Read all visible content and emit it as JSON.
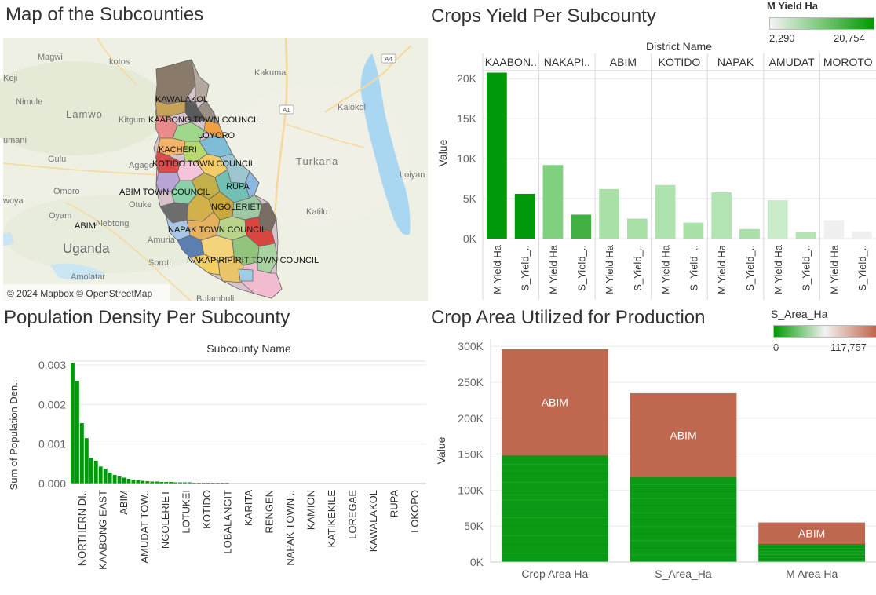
{
  "titles": {
    "map": "Map of the Subcounties",
    "yield": "Crops Yield Per Subcounty",
    "density": "Population Density Per Subcounty",
    "area": "Crop Area Utilized for Production"
  },
  "map": {
    "attribution": "© 2024 Mapbox © OpenStreetMap",
    "place_labels": [
      "Magwi",
      "Ikotos",
      "Kakuma",
      "Nimule",
      "Lamwo",
      "Kitgum",
      "Kalokol",
      "Gulu",
      "Agago",
      "Omoro",
      "Oyam",
      "Otuke",
      "Alebtong",
      "Amuria",
      "Uganda",
      "Soroti",
      "Amolatar",
      "Turkana",
      "Loiyan",
      "Katilu",
      "Bulambuli"
    ],
    "road_labels": [
      "A4",
      "A1"
    ],
    "edge_fragments": [
      "Keji",
      "umani",
      "woya"
    ],
    "subcounty_labels": [
      "KAWALAKOL",
      "KAABONG TOWN COUNCIL",
      "LOYORO",
      "KACHERI",
      "KOTIDO TOWN COUNCIL",
      "RUPA",
      "ABIM TOWN COUNCIL",
      "NGOLERIET",
      "NAPAK TOWN COUNCIL",
      "NAKAPIRIPIRIT TOWN COUNCIL",
      "ABIM"
    ],
    "colors": {
      "land": "#eef0e4",
      "water": "#a9d7f2",
      "road": "#f6d89a"
    }
  },
  "legends": {
    "yield": {
      "title": "M Yield Ha",
      "min": "2,290",
      "max": "20,754",
      "colors": [
        "#f3f3f3",
        "#009a00"
      ]
    },
    "area": {
      "title": "S_Area_Ha",
      "min": "0",
      "max": "117,757",
      "colors": [
        "#009a00",
        "#f2f2f2",
        "#c0654a"
      ]
    }
  },
  "chart_data": [
    {
      "type": "bar",
      "title": "Crops Yield Per Subcounty",
      "column_header": "District Name",
      "ylabel": "Value",
      "ylim": [
        0,
        21000
      ],
      "yticks": [
        0,
        5000,
        10000,
        15000,
        20000
      ],
      "ytick_labels": [
        "0K",
        "5K",
        "10K",
        "15K",
        "20K"
      ],
      "groups": [
        {
          "name": "KAABON..",
          "bars": [
            {
              "label": "M Yield Ha",
              "value": 20754,
              "color": "#00990a"
            },
            {
              "label": "S_Yield_..",
              "value": 5600,
              "color": "#00990a"
            }
          ]
        },
        {
          "name": "NAKAPI..",
          "bars": [
            {
              "label": "M Yield Ha",
              "value": 9200,
              "color": "#7fd07f"
            },
            {
              "label": "S_Yield_..",
              "value": 3000,
              "color": "#42b042"
            }
          ]
        },
        {
          "name": "ABIM",
          "bars": [
            {
              "label": "M Yield Ha",
              "value": 6200,
              "color": "#a8e0a8"
            },
            {
              "label": "S_Yield_..",
              "value": 2500,
              "color": "#a8e0a8"
            }
          ]
        },
        {
          "name": "KOTIDO",
          "bars": [
            {
              "label": "M Yield Ha",
              "value": 6700,
              "color": "#aee2ae"
            },
            {
              "label": "S_Yield_..",
              "value": 2000,
              "color": "#a8e0a8"
            }
          ]
        },
        {
          "name": "NAPAK",
          "bars": [
            {
              "label": "M Yield Ha",
              "value": 5800,
              "color": "#b4e4b4"
            },
            {
              "label": "S_Yield_..",
              "value": 1200,
              "color": "#a8e0a8"
            }
          ]
        },
        {
          "name": "AMUDAT",
          "bars": [
            {
              "label": "M Yield Ha",
              "value": 4800,
              "color": "#c9ebc9"
            },
            {
              "label": "S_Yield_..",
              "value": 800,
              "color": "#b4e4b4"
            }
          ]
        },
        {
          "name": "MOROTO",
          "bars": [
            {
              "label": "M Yield Ha",
              "value": 2290,
              "color": "#f0f0f0"
            },
            {
              "label": "S_Yield_..",
              "value": 900,
              "color": "#f0f0f0"
            }
          ]
        }
      ]
    },
    {
      "type": "bar",
      "title": "Population Density Per Subcounty",
      "xlabel": "Subcounty Name",
      "ylabel": "Sum of Population Den..",
      "ylim": [
        0,
        0.0031
      ],
      "yticks": [
        0,
        0.001,
        0.002,
        0.003
      ],
      "ytick_labels": [
        "0.000",
        "0.001",
        "0.002",
        "0.003"
      ],
      "color": "#00990a",
      "values": [
        0.00305,
        0.0026,
        0.00153,
        0.00115,
        0.00065,
        0.00058,
        0.00043,
        0.00038,
        0.00028,
        0.00022,
        0.00018,
        0.00015,
        0.00012,
        0.0001,
        8e-05,
        7e-05,
        6e-05,
        5e-05,
        5e-05,
        4e-05,
        4e-05,
        4e-05,
        3e-05,
        3e-05,
        3e-05,
        3e-05,
        2e-05,
        2e-05,
        2e-05,
        2e-05,
        2e-05,
        2e-05,
        2e-05,
        2e-05,
        1e-05,
        1e-05,
        1e-05,
        1e-05,
        1e-05,
        1e-05,
        1e-05,
        1e-05,
        1e-05,
        1e-05,
        1e-05,
        1e-05,
        1e-05,
        1e-05,
        1e-05,
        1e-05,
        1e-05,
        1e-05,
        1e-05,
        1e-05,
        1e-05,
        1e-05,
        1e-05,
        1e-05,
        1e-05,
        1e-05,
        1e-05,
        1e-05,
        1e-05,
        1e-05,
        1e-05,
        1e-05,
        1e-05,
        1e-05,
        1e-05,
        1e-05,
        1e-05,
        1e-05,
        1e-05,
        1e-05,
        1e-05,
        1e-05
      ],
      "tick_labels": [
        {
          "index": 1,
          "text": "NORTHERN DI.."
        },
        {
          "index": 5,
          "text": "KAABONG EAST"
        },
        {
          "index": 11,
          "text": "ABIM"
        },
        {
          "index": 17,
          "text": "AMUDAT TOW.."
        },
        {
          "index": 23,
          "text": "NGOLERIET"
        },
        {
          "index": 29,
          "text": "LOTUKEI"
        },
        {
          "index": 35,
          "text": "KOTIDO"
        },
        {
          "index": 41,
          "text": "LOBALANGIT"
        },
        {
          "index": 47,
          "text": "KARITA"
        },
        {
          "index": 53,
          "text": "RENGEN"
        },
        {
          "index": 59,
          "text": "NAPAK TOWN .."
        },
        {
          "index": 65,
          "text": "KAMION"
        },
        {
          "index": 71,
          "text": "KATIKEKILE"
        }
      ],
      "more_tick_labels": [
        "LOREGAE",
        "KAWALAKOL",
        "RUPA",
        "LOKOPO"
      ]
    },
    {
      "type": "bar",
      "stacked": true,
      "title": "Crop Area Utilized for Production",
      "ylabel": "Value",
      "ylim": [
        0,
        310000
      ],
      "yticks": [
        0,
        50000,
        100000,
        150000,
        200000,
        250000,
        300000
      ],
      "ytick_labels": [
        "0K",
        "50K",
        "100K",
        "150K",
        "200K",
        "250K",
        "300K"
      ],
      "categories": [
        "Crop Area Ha",
        "S_Area_Ha",
        "M Area Ha"
      ],
      "series": [
        {
          "values": [
            148000,
            117757,
            25000
          ],
          "color": "#0b9a16"
        },
        {
          "name": "ABIM",
          "values": [
            148000,
            117000,
            30000
          ],
          "color": "#c0684f"
        }
      ],
      "segment_labels": [
        "ABIM",
        "ABIM",
        "ABIM"
      ]
    }
  ]
}
